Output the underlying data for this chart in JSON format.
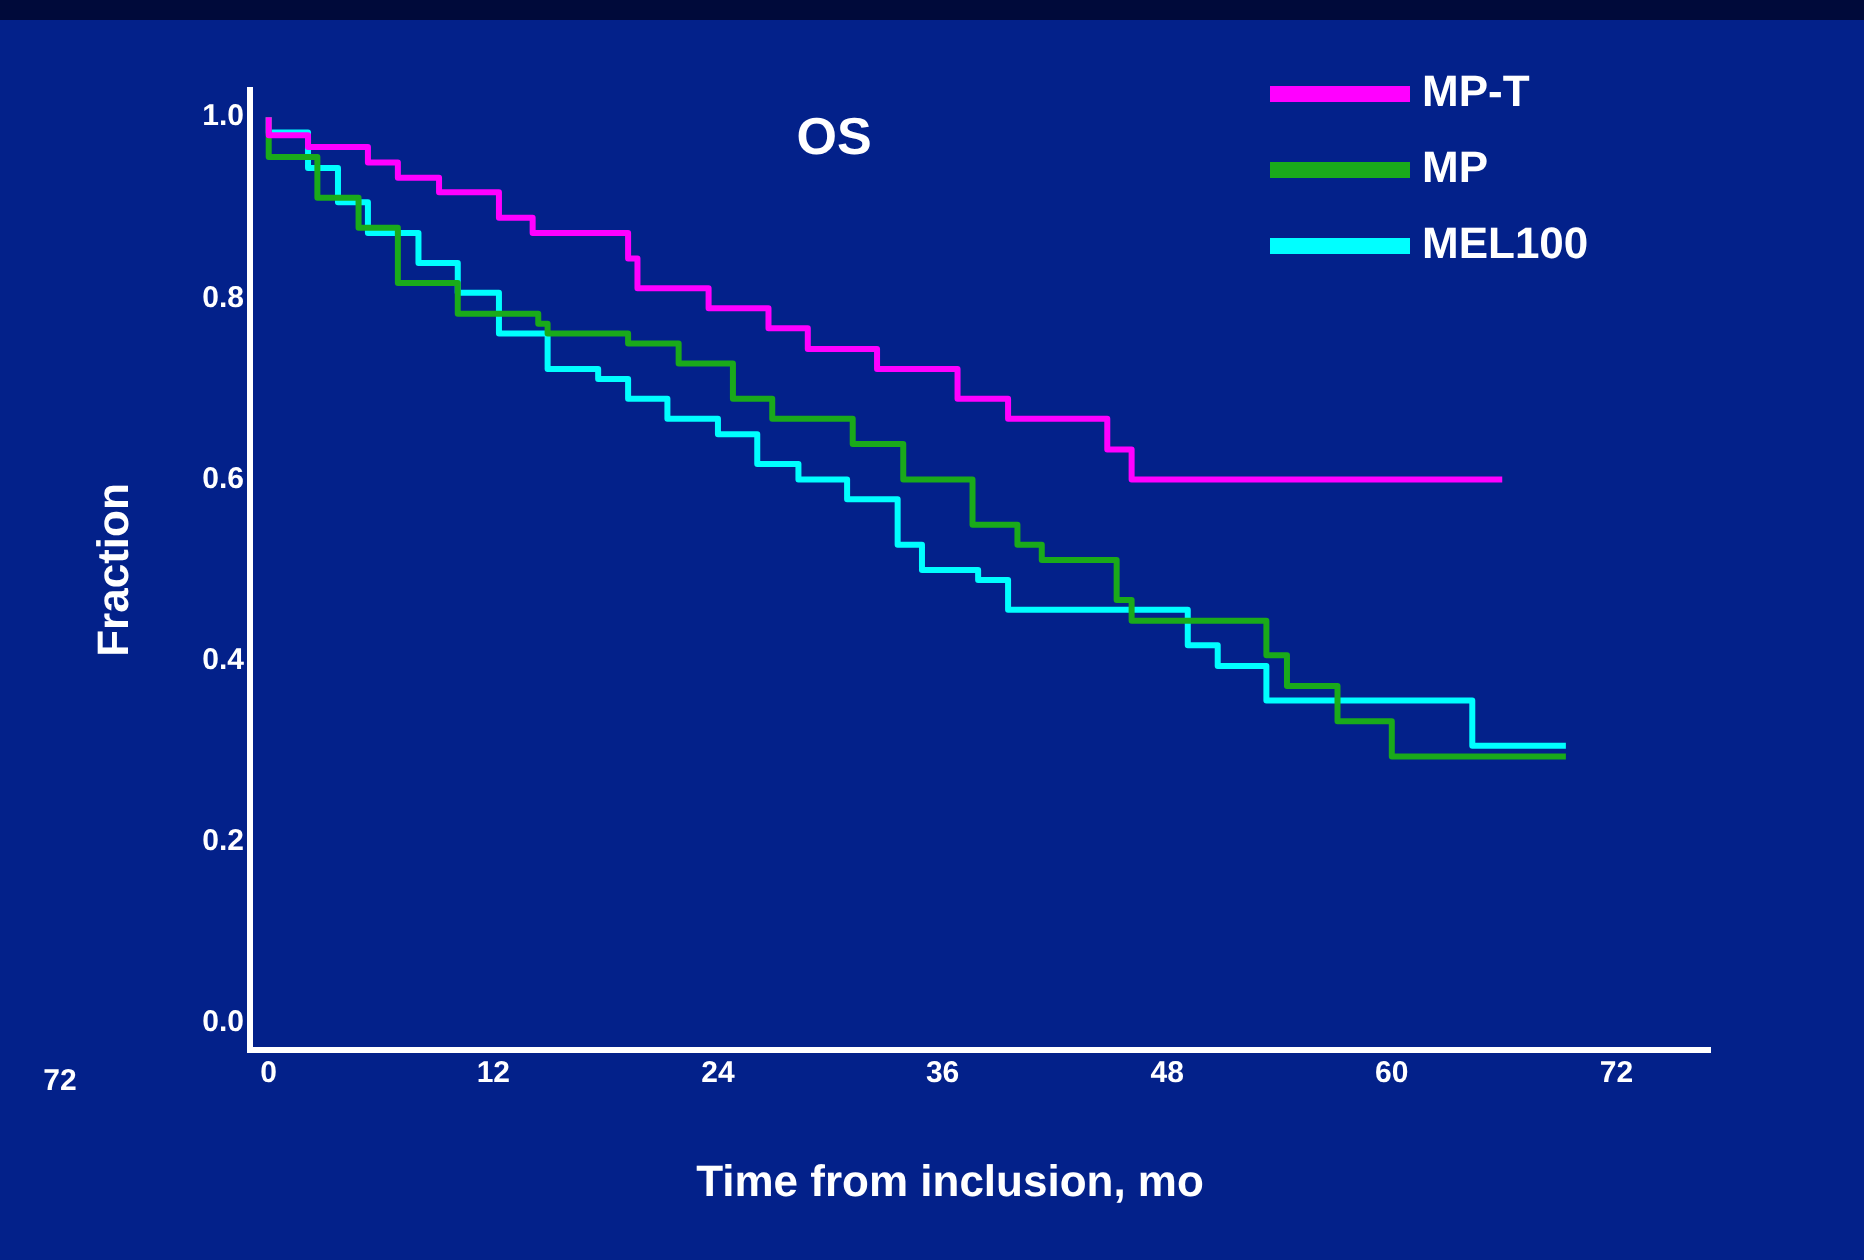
{
  "chart_data": {
    "type": "step",
    "title": "OS",
    "xlabel": "Time from inclusion, mo",
    "ylabel": "Fraction",
    "annotations": [
      "72"
    ],
    "xlim": [
      -1,
      77
    ],
    "xticks": [
      0,
      12,
      24,
      36,
      48,
      60,
      72
    ],
    "ylim": [
      -0.03,
      1.03
    ],
    "yticks": [
      {
        "value": 0,
        "label": "0.0"
      },
      0.2,
      0.4,
      0.6,
      0.8,
      {
        "value": 1,
        "label": "1.0"
      }
    ],
    "legend": "top right",
    "grid": false,
    "series": [
      {
        "name": "MP-T",
        "color": "#ff00ff",
        "x": [
          0,
          2.1,
          5.3,
          6.9,
          9.1,
          12.3,
          14.1,
          19.2,
          19.7,
          23.5,
          26.7,
          28.8,
          32.5,
          36.8,
          39.5,
          44.8,
          46.1,
          50.9,
          65.9
        ],
        "values": [
          1.0,
          0.98,
          0.967,
          0.95,
          0.933,
          0.917,
          0.889,
          0.872,
          0.844,
          0.811,
          0.789,
          0.767,
          0.744,
          0.722,
          0.689,
          0.667,
          0.633,
          0.6,
          0.6
        ]
      },
      {
        "name": "MP",
        "color": "#1aaa1a",
        "x": [
          0,
          2.6,
          4.8,
          6.9,
          10.1,
          14.4,
          14.9,
          19.2,
          21.9,
          24.8,
          26.9,
          31.2,
          33.9,
          37.6,
          40.0,
          41.3,
          45.3,
          46.1,
          53.3,
          54.4,
          57.1,
          60.0,
          62.1,
          69.3
        ],
        "values": [
          1.0,
          0.956,
          0.911,
          0.878,
          0.817,
          0.783,
          0.772,
          0.761,
          0.75,
          0.728,
          0.689,
          0.667,
          0.639,
          0.6,
          0.55,
          0.528,
          0.511,
          0.467,
          0.444,
          0.406,
          0.372,
          0.333,
          0.294,
          0.294
        ]
      },
      {
        "name": "MEL100",
        "color": "#00ffff",
        "x": [
          0,
          2.1,
          3.7,
          5.3,
          8.0,
          10.1,
          12.3,
          14.9,
          17.6,
          19.2,
          21.3,
          24.0,
          26.1,
          28.3,
          30.9,
          33.6,
          34.9,
          37.9,
          39.5,
          49.1,
          50.7,
          53.3,
          54.7,
          64.3,
          64.5,
          69.3
        ],
        "values": [
          1.0,
          0.983,
          0.944,
          0.906,
          0.872,
          0.839,
          0.806,
          0.761,
          0.722,
          0.711,
          0.689,
          0.667,
          0.65,
          0.617,
          0.6,
          0.578,
          0.528,
          0.5,
          0.489,
          0.456,
          0.417,
          0.394,
          0.356,
          0.356,
          0.306,
          0.306
        ]
      }
    ]
  }
}
